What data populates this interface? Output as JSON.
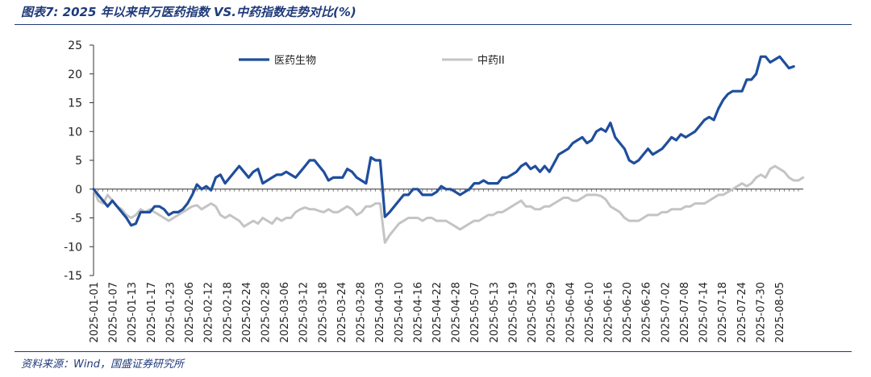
{
  "header": {
    "title": "图表7:  2025 年以来申万医药指数 VS.中药指数走势对比(%)"
  },
  "footer": {
    "source": "资料来源：Wind，国盛证券研究所"
  },
  "colors": {
    "series1": "#1f4e9c",
    "series2": "#c4c4c4",
    "brand": "#1f3a7a"
  },
  "chart_data": {
    "type": "line",
    "title": "2025 年以来申万医药指数 VS.中药指数走势对比(%)",
    "xlabel": "",
    "ylabel": "",
    "ylim": [
      -15,
      25
    ],
    "yticks": [
      -15,
      -10,
      -5,
      0,
      5,
      10,
      15,
      20,
      25
    ],
    "x_tick_labels": [
      "2025-01-01",
      "2025-01-07",
      "2025-01-13",
      "2025-01-17",
      "2025-01-23",
      "2025-02-06",
      "2025-02-12",
      "2025-02-18",
      "2025-02-24",
      "2025-02-28",
      "2025-03-06",
      "2025-03-12",
      "2025-03-18",
      "2025-03-24",
      "2025-03-28",
      "2025-04-03",
      "2025-04-10",
      "2025-04-16",
      "2025-04-22",
      "2025-04-28",
      "2025-05-07",
      "2025-05-13",
      "2025-05-19",
      "2025-05-23",
      "2025-05-29",
      "2025-06-04",
      "2025-06-10",
      "2025-06-16",
      "2025-06-20",
      "2025-06-26",
      "2025-07-02",
      "2025-07-08",
      "2025-07-14",
      "2025-07-18",
      "2025-07-24",
      "2025-07-30",
      "2025-08-05"
    ],
    "x_count": 151,
    "legend_position": "top",
    "series": [
      {
        "name": "医药生物",
        "values": [
          0,
          -1,
          -2,
          -3,
          -2,
          -3,
          -4,
          -5,
          -6.3,
          -6,
          -4,
          -4,
          -4,
          -3,
          -3,
          -3.5,
          -4.5,
          -4,
          -4,
          -3.5,
          -2.5,
          -1,
          0.8,
          0,
          0.5,
          -0.2,
          2,
          2.5,
          1,
          2,
          3,
          4,
          3,
          2,
          3,
          3.5,
          1,
          1.5,
          2,
          2.5,
          2.5,
          3,
          2.5,
          2,
          3,
          4,
          5,
          5,
          4,
          3,
          1.5,
          2,
          2,
          2,
          3.5,
          3,
          2,
          1.5,
          1,
          5.5,
          5,
          5,
          -4.8,
          -4,
          -3,
          -2,
          -1,
          -1,
          0,
          0,
          -1,
          -1,
          -1,
          -0.5,
          0.5,
          0,
          0,
          -0.5,
          -1,
          -0.5,
          0,
          1,
          1,
          1.5,
          1,
          1,
          1,
          2,
          2,
          2.5,
          3,
          4,
          4.5,
          3.5,
          4,
          3,
          4,
          3,
          4.5,
          6,
          6.5,
          7,
          8,
          8.5,
          9,
          8,
          8.5,
          10,
          10.5,
          10,
          11.5,
          9,
          8,
          7,
          5,
          4.5,
          5,
          6,
          7,
          6,
          6.5,
          7,
          8,
          9,
          8.5,
          9.5,
          9,
          9.5,
          10,
          11,
          12,
          12.5,
          12,
          14,
          15.5,
          16.5,
          17,
          17,
          17,
          19,
          19,
          20,
          23,
          23,
          22,
          22.5,
          23,
          22,
          21,
          21.3
        ]
      },
      {
        "name": "中药II",
        "values": [
          0,
          -2,
          -2.5,
          -1,
          -2,
          -3,
          -3.5,
          -4.5,
          -5,
          -4.5,
          -3.5,
          -4,
          -3.5,
          -4,
          -4.5,
          -5,
          -5.5,
          -5,
          -4.5,
          -4,
          -3.5,
          -3,
          -2.8,
          -3.5,
          -3,
          -2.5,
          -3,
          -4.5,
          -5,
          -4.5,
          -5,
          -5.5,
          -6.5,
          -6,
          -5.5,
          -6,
          -5,
          -5.5,
          -6,
          -5,
          -5.5,
          -5,
          -5,
          -4,
          -3.5,
          -3.2,
          -3.5,
          -3.5,
          -3.8,
          -4,
          -3.5,
          -4,
          -4,
          -3.5,
          -3,
          -3.5,
          -4.5,
          -4,
          -3,
          -3,
          -2.5,
          -2.5,
          -9.3,
          -8,
          -7,
          -6,
          -5.5,
          -5,
          -5,
          -5,
          -5.5,
          -5,
          -5,
          -5.5,
          -5.5,
          -5.5,
          -6,
          -6.5,
          -7,
          -6.5,
          -6,
          -5.5,
          -5.5,
          -5,
          -4.5,
          -4.5,
          -4,
          -4,
          -3.5,
          -3,
          -2.5,
          -2,
          -3,
          -3,
          -3.5,
          -3.5,
          -3,
          -3,
          -2.5,
          -2,
          -1.5,
          -1.5,
          -2,
          -2,
          -1.5,
          -1,
          -1,
          -1,
          -1.2,
          -1.8,
          -3,
          -3.5,
          -4,
          -5,
          -5.5,
          -5.5,
          -5.5,
          -5,
          -4.5,
          -4.5,
          -4.5,
          -4,
          -4,
          -3.5,
          -3.5,
          -3.5,
          -3,
          -3,
          -2.5,
          -2.5,
          -2.5,
          -2,
          -1.5,
          -1,
          -1,
          -0.5,
          0,
          0.5,
          1,
          0.5,
          1,
          2,
          2.5,
          2,
          3.5,
          4,
          3.5,
          3,
          2,
          1.5,
          1.5,
          2
        ]
      }
    ]
  }
}
